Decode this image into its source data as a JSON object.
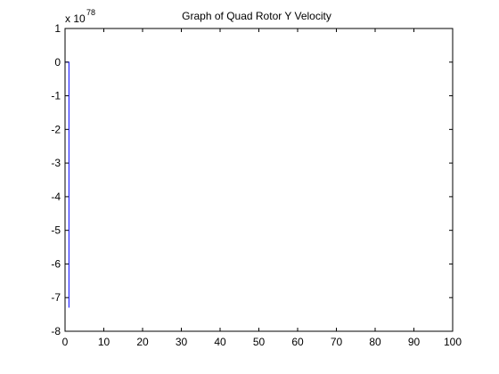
{
  "chart_data": {
    "type": "line",
    "title": "Graph of Quad Rotor Y Velocity",
    "xlabel": "",
    "ylabel": "",
    "y_exponent_label": "x 10",
    "y_exponent_power": "78",
    "xlim": [
      0,
      100
    ],
    "ylim": [
      -8,
      1
    ],
    "x_ticks": [
      0,
      10,
      20,
      30,
      40,
      50,
      60,
      70,
      80,
      90,
      100
    ],
    "y_ticks": [
      1,
      0,
      -1,
      -2,
      -3,
      -4,
      -5,
      -6,
      -7,
      -8
    ],
    "grid": false,
    "series": [
      {
        "color": "#0000ff",
        "x": [
          0,
          0,
          1,
          1,
          1
        ],
        "y": [
          0,
          0,
          0,
          0,
          -7.3
        ]
      }
    ]
  }
}
